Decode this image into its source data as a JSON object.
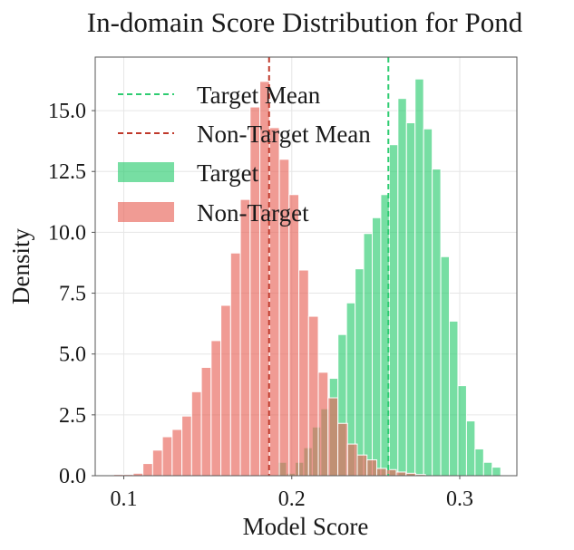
{
  "chart_data": {
    "type": "histogram",
    "title": "In-domain Score Distribution for Pond",
    "xlabel": "Model Score",
    "ylabel": "Density",
    "xlim": [
      0.083,
      0.334
    ],
    "ylim": [
      0,
      17.2
    ],
    "x_ticks": [
      0.1,
      0.2,
      0.3
    ],
    "x_tick_labels": [
      "0.1",
      "0.2",
      "0.3"
    ],
    "y_ticks": [
      0,
      2.5,
      5,
      7.5,
      10,
      12.5,
      15
    ],
    "y_tick_labels": [
      "0.0",
      "2.5",
      "5.0",
      "7.5",
      "10.0",
      "12.5",
      "15.0"
    ],
    "grid": true,
    "legend_position": "upper-left",
    "series": [
      {
        "name": "Target",
        "color": "#2ecc71",
        "bin_edges": [
          0.1918,
          0.1969,
          0.202,
          0.2071,
          0.2122,
          0.2173,
          0.2224,
          0.2275,
          0.2326,
          0.2377,
          0.2428,
          0.2479,
          0.253,
          0.2581,
          0.2632,
          0.2683,
          0.2734,
          0.2785,
          0.2836,
          0.2887,
          0.2938,
          0.2989,
          0.304,
          0.3091,
          0.3142,
          0.3193,
          0.3244
        ],
        "density": [
          0.55,
          0.1,
          0.55,
          1.15,
          2.0,
          2.75,
          4.0,
          5.8,
          7.1,
          8.5,
          9.95,
          10.6,
          11.55,
          13.6,
          15.5,
          14.5,
          16.3,
          14.25,
          12.6,
          9.0,
          6.35,
          3.7,
          2.25,
          1.1,
          0.55,
          0.35
        ]
      },
      {
        "name": "Non-Target",
        "color": "#e8665a",
        "bin_edges": [
          0.094,
          0.0998,
          0.1056,
          0.1114,
          0.1172,
          0.123,
          0.1288,
          0.1346,
          0.1404,
          0.1462,
          0.152,
          0.1578,
          0.1636,
          0.1694,
          0.1752,
          0.181,
          0.1868,
          0.1926,
          0.1984,
          0.2042,
          0.21,
          0.2158,
          0.2216,
          0.2274,
          0.2332,
          0.239,
          0.2448,
          0.2506,
          0.2564,
          0.2622,
          0.268,
          0.2738,
          0.2796
        ],
        "density": [
          0.05,
          0.05,
          0.1,
          0.5,
          1.05,
          1.6,
          1.9,
          2.45,
          3.45,
          4.45,
          5.55,
          7.0,
          9.15,
          11.35,
          15.15,
          16.2,
          14.3,
          13.0,
          11.55,
          8.45,
          6.55,
          4.25,
          3.2,
          2.15,
          1.3,
          0.85,
          0.65,
          0.3,
          0.25,
          0.15,
          0.1,
          0.05
        ]
      }
    ],
    "reference_lines": [
      {
        "name": "Target Mean",
        "x": 0.2575,
        "color": "#2ecc71",
        "style": "dashed"
      },
      {
        "name": "Non-Target Mean",
        "x": 0.1865,
        "color": "#c0392b",
        "style": "dashed"
      }
    ],
    "legend": [
      {
        "label": "Target Mean",
        "kind": "line",
        "color": "#2ecc71"
      },
      {
        "label": "Non-Target Mean",
        "kind": "line",
        "color": "#c0392b"
      },
      {
        "label": "Target",
        "kind": "patch",
        "color": "#2ecc71"
      },
      {
        "label": "Non-Target",
        "kind": "patch",
        "color": "#e8665a"
      }
    ]
  }
}
